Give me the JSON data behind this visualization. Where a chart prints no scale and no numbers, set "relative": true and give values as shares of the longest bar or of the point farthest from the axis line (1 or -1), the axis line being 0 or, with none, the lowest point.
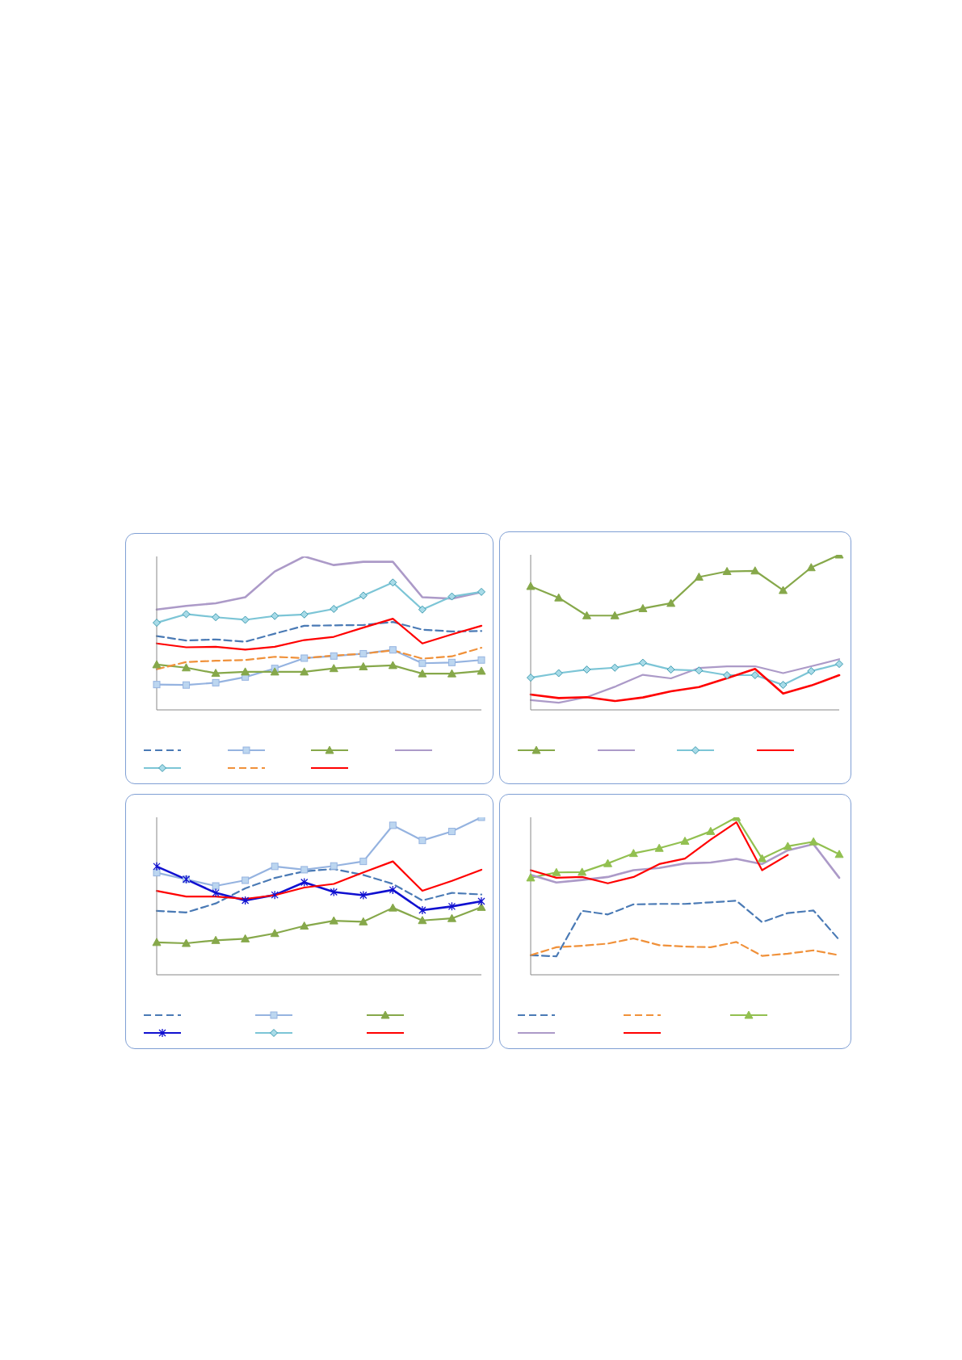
{
  "chart_data": [
    {
      "type": "line",
      "relative": true,
      "tick_labels": false,
      "categories": [
        null,
        null,
        null,
        null,
        null,
        null,
        null,
        null,
        null,
        null,
        null,
        null
      ],
      "series": [
        {
          "color": "#4a7ab5",
          "line_style": "dashed",
          "marker": "none",
          "values": [
            0.481,
            0.452,
            0.459,
            0.444,
            0.497,
            0.548,
            0.551,
            0.553,
            0.573,
            0.523,
            0.511,
            0.514
          ]
        },
        {
          "color": "#95b3e0",
          "line_style": "solid",
          "marker": "square",
          "values": [
            0.165,
            0.162,
            0.177,
            0.214,
            0.27,
            0.337,
            0.351,
            0.366,
            0.391,
            0.304,
            0.309,
            0.325
          ]
        },
        {
          "color": "#86a84a",
          "line_style": "solid",
          "marker": "triangle",
          "values": [
            0.295,
            0.275,
            0.239,
            0.248,
            0.248,
            0.248,
            0.27,
            0.282,
            0.29,
            0.236,
            0.236,
            0.253
          ]
        },
        {
          "color": "#ac9ac8",
          "line_style": "solid",
          "marker": "none",
          "values": [
            0.654,
            0.678,
            0.695,
            0.734,
            0.902,
            1,
            0.944,
            0.965,
            0.965,
            0.734,
            0.725,
            0.767
          ]
        },
        {
          "color": "#7cc5d6",
          "line_style": "solid",
          "marker": "diamond",
          "values": [
            0.568,
            0.624,
            0.604,
            0.587,
            0.612,
            0.622,
            0.658,
            0.745,
            0.83,
            0.654,
            0.739,
            0.769
          ]
        },
        {
          "color": "#f0913a",
          "line_style": "dashed",
          "marker": "none",
          "values": [
            0.265,
            0.312,
            0.32,
            0.325,
            0.346,
            0.337,
            0.354,
            0.366,
            0.388,
            0.334,
            0.349,
            0.405
          ]
        },
        {
          "color": "#ff0000",
          "line_style": "solid",
          "marker": "none",
          "values": [
            0.433,
            0.408,
            0.411,
            0.393,
            0.411,
            0.455,
            0.476,
            0.536,
            0.594,
            0.433,
            0.492,
            0.548
          ]
        }
      ]
    },
    {
      "type": "line",
      "relative": true,
      "tick_labels": false,
      "categories": [
        null,
        null,
        null,
        null,
        null,
        null,
        null,
        null,
        null,
        null,
        null,
        null
      ],
      "series": [
        {
          "color": "#86a84a",
          "line_style": "solid",
          "marker": "triangle",
          "values": [
            0.797,
            0.723,
            0.608,
            0.608,
            0.654,
            0.688,
            0.857,
            0.893,
            0.897,
            0.771,
            0.918,
            1
          ]
        },
        {
          "color": "#ac9ac8",
          "line_style": "solid",
          "marker": "none",
          "values": [
            0.063,
            0.046,
            0.082,
            0.149,
            0.226,
            0.203,
            0.27,
            0.281,
            0.281,
            0.237,
            0.281,
            0.327
          ]
        },
        {
          "color": "#7cc5d6",
          "line_style": "solid",
          "marker": "diamond",
          "values": [
            0.208,
            0.237,
            0.26,
            0.272,
            0.304,
            0.26,
            0.254,
            0.224,
            0.224,
            0.161,
            0.25,
            0.296
          ]
        },
        {
          "color": "#ff0000",
          "line_style": "solid",
          "marker": "none",
          "values": [
            0.099,
            0.076,
            0.082,
            0.057,
            0.08,
            0.12,
            0.147,
            0.205,
            0.264,
            0.105,
            0.157,
            0.224
          ]
        }
      ]
    },
    {
      "type": "line",
      "relative": true,
      "tick_labels": false,
      "categories": [
        null,
        null,
        null,
        null,
        null,
        null,
        null,
        null,
        null,
        null,
        null,
        null
      ],
      "series": [
        {
          "color": "#4a7ab5",
          "line_style": "dashed",
          "marker": "none",
          "values": [
            0.406,
            0.396,
            0.453,
            0.549,
            0.615,
            0.657,
            0.672,
            0.634,
            0.577,
            0.472,
            0.52,
            0.51
          ]
        },
        {
          "color": "#95b3e0",
          "line_style": "solid",
          "marker": "square",
          "values": [
            0.648,
            0.606,
            0.564,
            0.6,
            0.688,
            0.667,
            0.691,
            0.72,
            0.949,
            0.853,
            0.91,
            1
          ]
        },
        {
          "color": "#86a84a",
          "line_style": "solid",
          "marker": "triangle",
          "values": [
            0.206,
            0.2,
            0.219,
            0.229,
            0.263,
            0.31,
            0.343,
            0.337,
            0.425,
            0.345,
            0.358,
            0.429
          ]
        },
        {
          "color": "#1010d0",
          "line_style": "solid",
          "marker": "cross",
          "values": [
            0.688,
            0.606,
            0.52,
            0.472,
            0.507,
            0.587,
            0.526,
            0.505,
            0.539,
            0.41,
            0.434,
            0.467
          ]
        },
        {
          "color": "#7cc5d6",
          "line_style": "solid",
          "marker": "diamond",
          "values": [
            null,
            null,
            null,
            null,
            null,
            null,
            null,
            null,
            null,
            null,
            null,
            null
          ]
        },
        {
          "color": "#ff0000",
          "line_style": "solid",
          "marker": "none",
          "values": [
            0.533,
            0.497,
            0.497,
            0.482,
            0.505,
            0.554,
            0.577,
            0.65,
            0.72,
            0.533,
            0.596,
            0.667
          ]
        }
      ]
    },
    {
      "type": "line",
      "relative": true,
      "tick_labels": false,
      "categories": [
        null,
        null,
        null,
        null,
        null,
        null,
        null,
        null,
        null,
        null,
        null,
        null,
        null
      ],
      "series": [
        {
          "color": "#4a7ab5",
          "line_style": "dashed",
          "marker": "none",
          "values": [
            0.124,
            0.117,
            0.406,
            0.383,
            0.447,
            0.45,
            0.45,
            0.46,
            0.47,
            0.334,
            0.392,
            0.408,
            0.221
          ]
        },
        {
          "color": "#f0913a",
          "line_style": "dashed",
          "marker": "none",
          "values": [
            0.124,
            0.175,
            0.184,
            0.198,
            0.231,
            0.188,
            0.179,
            0.175,
            0.208,
            0.12,
            0.134,
            0.155,
            0.124
          ]
        },
        {
          "color": "#92c050",
          "line_style": "solid",
          "marker": "triangle",
          "values": [
            0.616,
            0.65,
            0.652,
            0.707,
            0.771,
            0.804,
            0.849,
            0.911,
            1,
            0.738,
            0.816,
            0.845,
            0.765
          ]
        },
        {
          "color": "#ac9ac8",
          "line_style": "solid",
          "marker": "none",
          "values": [
            0.635,
            0.586,
            0.602,
            0.621,
            0.664,
            0.678,
            0.707,
            0.713,
            0.736,
            0.703,
            0.79,
            0.829,
            0.616
          ]
        },
        {
          "color": "#ff0000",
          "line_style": "solid",
          "marker": "none",
          "values": [
            0.664,
            0.616,
            0.621,
            0.581,
            0.621,
            0.703,
            0.738,
            0.858,
            0.969,
            0.664,
            0.761,
            null,
            null
          ]
        }
      ]
    }
  ]
}
